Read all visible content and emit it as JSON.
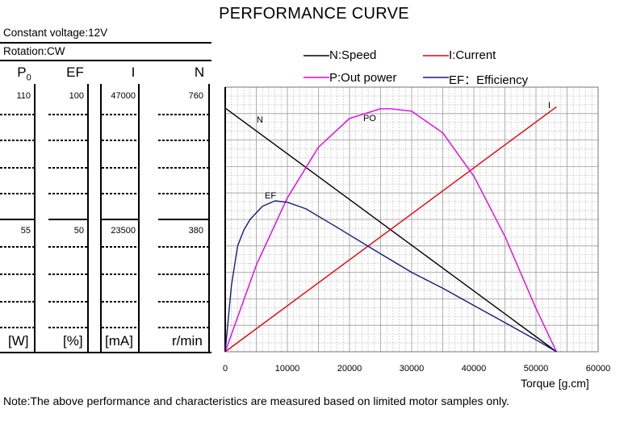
{
  "title": "PERFORMANCE CURVE",
  "info": {
    "voltage": "Constant voltage:12V",
    "rotation": "Rotation:CW"
  },
  "columns": [
    {
      "head": "P",
      "head_sub": "0",
      "top": "110",
      "mid": "55",
      "unit": "[W]"
    },
    {
      "head": "EF",
      "top": "100",
      "mid": "50",
      "unit": "[%]"
    },
    {
      "head": "I",
      "top": "47000",
      "mid": "23500",
      "unit": "[mA]"
    },
    {
      "head": "N",
      "top": "760",
      "mid": "380",
      "unit": "r/min"
    }
  ],
  "legend": {
    "speed": "N:Speed",
    "current": "I:Current",
    "power": "P:Out power",
    "efficiency": "EF：Efficiency"
  },
  "note": "Note:The above performance and characteristics are measured based on limited motor samples only.",
  "chart_data": {
    "type": "line",
    "title": "PERFORMANCE CURVE",
    "xlabel": "Torque [g.cm]",
    "x_ticks": [
      "0",
      "10000",
      "20000",
      "30000",
      "40000",
      "50000",
      "60000"
    ],
    "xlim": [
      0,
      60000
    ],
    "grid": true,
    "legend_position": "top",
    "series": [
      {
        "name": "N:Speed",
        "label": "N",
        "color": "#000000",
        "unit": "r/min",
        "max": 760,
        "points": [
          [
            0,
            700
          ],
          [
            53300,
            0
          ]
        ]
      },
      {
        "name": "I:Current",
        "label": "I",
        "color": "#e8000b",
        "unit": "mA",
        "max": 47000,
        "points": [
          [
            0,
            0
          ],
          [
            53300,
            43500
          ]
        ]
      },
      {
        "name": "P:Out power",
        "label": "PO",
        "color": "#e600e6",
        "unit": "W",
        "max": 110,
        "points": [
          [
            0,
            0
          ],
          [
            5000,
            36
          ],
          [
            10000,
            64
          ],
          [
            15000,
            85
          ],
          [
            20000,
            97
          ],
          [
            25000,
            101
          ],
          [
            26650,
            101
          ],
          [
            30000,
            100
          ],
          [
            35000,
            91
          ],
          [
            40000,
            73
          ],
          [
            45000,
            48
          ],
          [
            50000,
            18
          ],
          [
            53300,
            0
          ]
        ]
      },
      {
        "name": "EF：Efficiency",
        "label": "EF",
        "color": "#1a1a80",
        "unit": "%",
        "max": 100,
        "points": [
          [
            0,
            0
          ],
          [
            1000,
            25
          ],
          [
            2000,
            40
          ],
          [
            3000,
            46
          ],
          [
            4000,
            50
          ],
          [
            6000,
            55
          ],
          [
            8000,
            57
          ],
          [
            10000,
            56.5
          ],
          [
            13000,
            54
          ],
          [
            18000,
            47
          ],
          [
            25000,
            37
          ],
          [
            30000,
            30
          ],
          [
            35000,
            24
          ],
          [
            40000,
            17.5
          ],
          [
            45000,
            11
          ],
          [
            50000,
            4.5
          ],
          [
            53300,
            0
          ]
        ]
      }
    ]
  }
}
